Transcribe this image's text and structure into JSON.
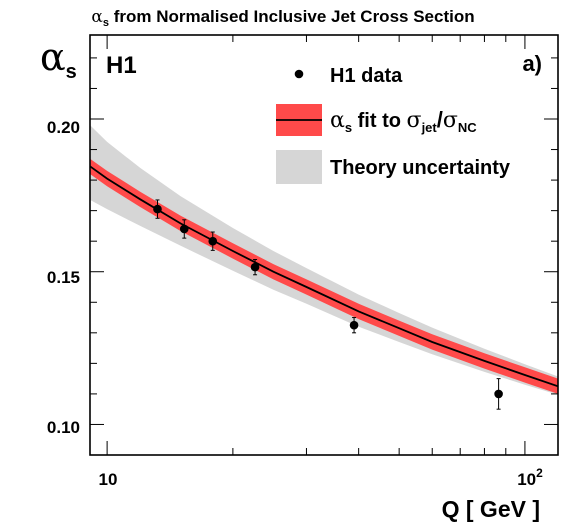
{
  "chart_data": {
    "type": "scatter",
    "title": {
      "alpha": "α",
      "sub": "s",
      "rest": " from Normalised Inclusive Jet Cross Section"
    },
    "experiment_label": "H1",
    "panel_label": "a)",
    "ylabel": {
      "symbol": "α",
      "sub": "s"
    },
    "xlabel": "Q  [ GeV ]",
    "x_scale": "log",
    "xlim": [
      9.1,
      120
    ],
    "ylim": [
      0.09,
      0.2275
    ],
    "y_tick_labels": [
      "0.10",
      "0.15",
      "0.20"
    ],
    "x_tick_labels": [
      {
        "base": "10",
        "exp": ""
      },
      {
        "base": "10",
        "exp": "2"
      }
    ],
    "legend": {
      "placement": "top-right",
      "data_label": "H1 data",
      "fit_label": {
        "a": "α",
        "a_sub": "s",
        "mid": " fit to ",
        "s1": "σ",
        "s1_sub": "jet",
        "slash": "/",
        "s2": "σ",
        "s2_sub": "NC"
      },
      "theory_label": "Theory uncertainty"
    },
    "series": [
      {
        "name": "H1 data",
        "kind": "points",
        "x": [
          13.2,
          15.3,
          17.9,
          22.6,
          39.0,
          86.5
        ],
        "y": [
          0.1705,
          0.164,
          0.16,
          0.1515,
          0.1325,
          0.11
        ],
        "yerr": [
          0.003,
          0.003,
          0.003,
          0.0025,
          0.0025,
          0.005
        ]
      },
      {
        "name": "αs fit to σjet/σNC",
        "kind": "curve",
        "x": [
          9.1,
          10,
          12,
          15,
          20,
          25,
          30,
          40,
          50,
          60,
          80,
          100,
          120
        ],
        "y": [
          0.1845,
          0.1805,
          0.1737,
          0.1658,
          0.1568,
          0.15,
          0.145,
          0.137,
          0.1315,
          0.127,
          0.1208,
          0.1162,
          0.1125
        ],
        "band": 0.0025,
        "color": "#ff4a4a",
        "line_color": "#000000"
      },
      {
        "name": "Theory uncertainty",
        "kind": "band",
        "x": [
          9.1,
          10,
          12,
          15,
          20,
          25,
          30,
          40,
          50,
          60,
          80,
          100,
          120
        ],
        "lower": [
          0.1735,
          0.1705,
          0.165,
          0.1585,
          0.1503,
          0.1441,
          0.1395,
          0.132,
          0.127,
          0.123,
          0.1172,
          0.113,
          0.1097
        ],
        "upper": [
          0.198,
          0.1925,
          0.184,
          0.1747,
          0.1643,
          0.1568,
          0.1512,
          0.1425,
          0.1365,
          0.1317,
          0.1248,
          0.1197,
          0.1157
        ],
        "color": "#d6d6d6"
      }
    ]
  }
}
